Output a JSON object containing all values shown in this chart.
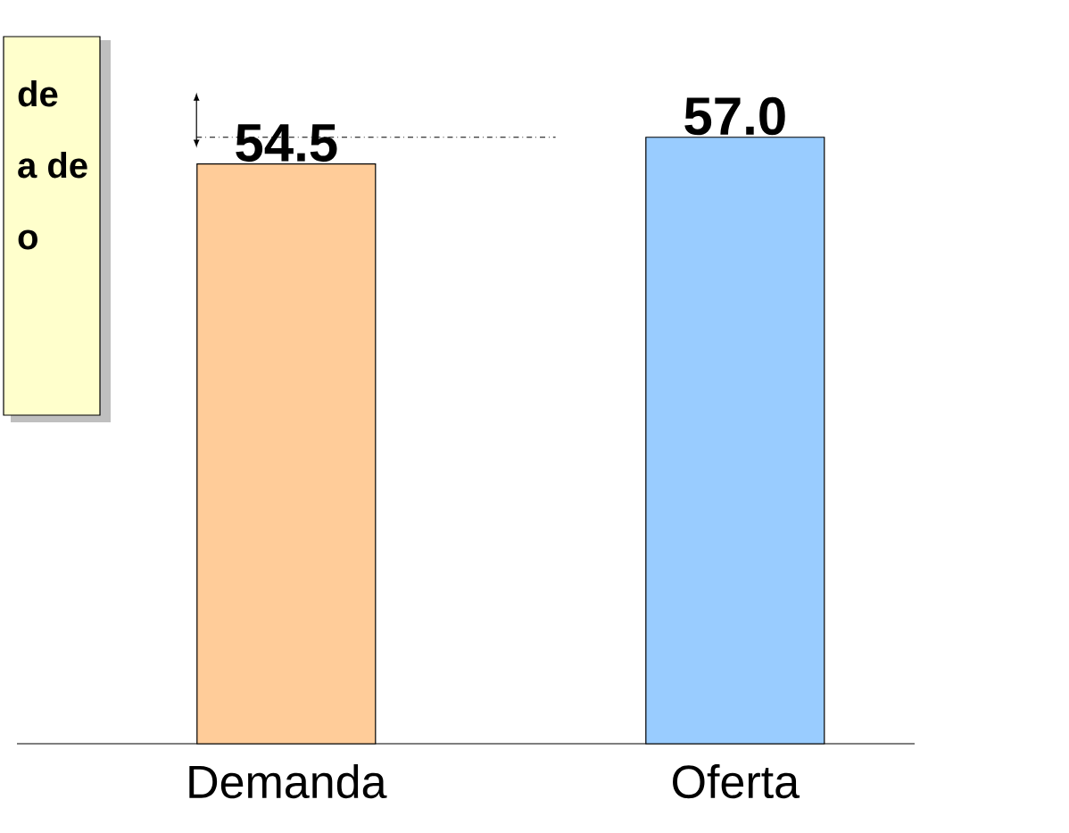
{
  "chart_data": {
    "type": "bar",
    "categories": [
      "Demanda",
      "Oferta"
    ],
    "values": [
      54.5,
      57.0
    ],
    "value_labels": [
      "54.5",
      "57.0"
    ],
    "colors": [
      "#ffcc99",
      "#99ccff"
    ],
    "annotations": [
      "de",
      "a de",
      "o"
    ]
  }
}
